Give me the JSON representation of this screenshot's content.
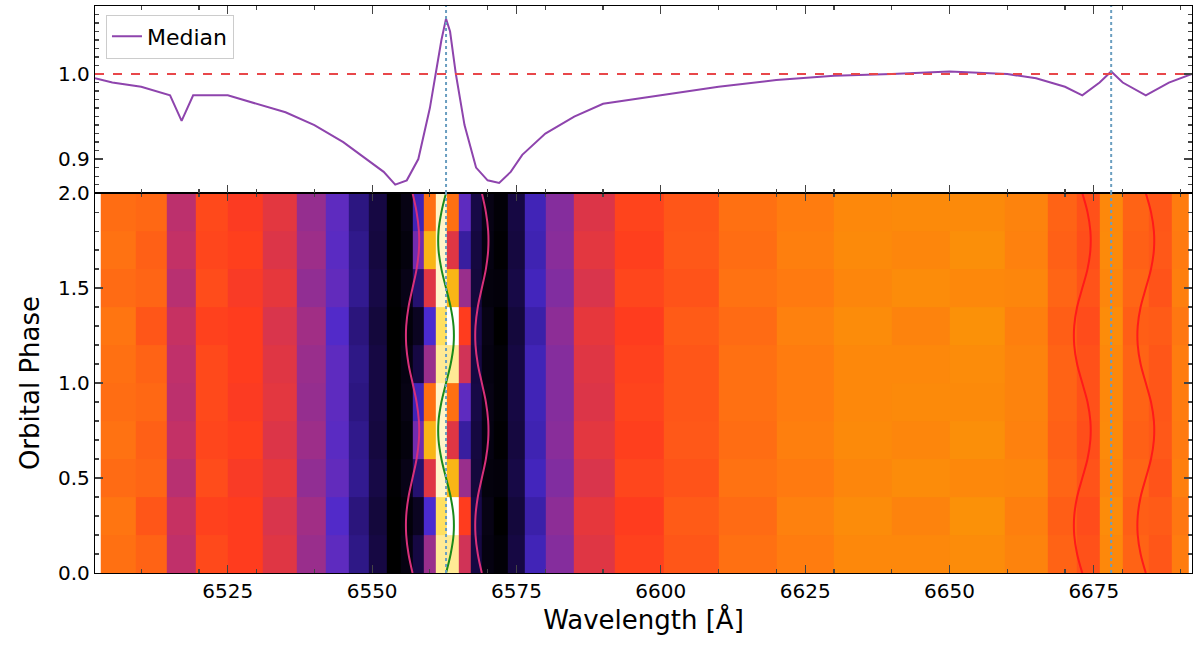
{
  "chart_data": [
    {
      "type": "line",
      "series": [
        {
          "name": "Median",
          "color": "#8e44ad",
          "x": [
            6502,
            6505,
            6510,
            6515,
            6517,
            6519,
            6525,
            6530,
            6535,
            6540,
            6545,
            6548,
            6550,
            6552,
            6554,
            6556,
            6558,
            6560,
            6561,
            6562,
            6562.8,
            6563.5,
            6564.5,
            6566,
            6568,
            6570,
            6572,
            6574,
            6576,
            6580,
            6585,
            6590,
            6600,
            6610,
            6620,
            6630,
            6640,
            6650,
            6660,
            6665,
            6670,
            6673,
            6676,
            6678,
            6680,
            6684,
            6688,
            6692
          ],
          "values": [
            0.995,
            0.99,
            0.985,
            0.975,
            0.945,
            0.975,
            0.975,
            0.965,
            0.955,
            0.94,
            0.92,
            0.905,
            0.895,
            0.885,
            0.87,
            0.875,
            0.9,
            0.96,
            1.0,
            1.04,
            1.065,
            1.05,
            1.0,
            0.94,
            0.89,
            0.875,
            0.872,
            0.885,
            0.905,
            0.93,
            0.95,
            0.965,
            0.975,
            0.985,
            0.993,
            0.998,
            1.0,
            1.003,
            1.0,
            0.995,
            0.985,
            0.975,
            0.99,
            1.003,
            0.99,
            0.975,
            0.99,
            1.0
          ]
        }
      ],
      "reference_lines": [
        {
          "axis": "y",
          "value": 1.0,
          "color": "#e8474a",
          "line_style": "dashed"
        },
        {
          "axis": "x",
          "value": 6562.8,
          "color": "#6a9ec0",
          "line_style": "dotted"
        },
        {
          "axis": "x",
          "value": 6678,
          "color": "#6a9ec0",
          "line_style": "dotted"
        }
      ],
      "xlim": [
        6502,
        6692
      ],
      "xticks": [
        6525,
        6550,
        6575,
        6600,
        6625,
        6650,
        6675
      ],
      "ylim": [
        0.86,
        1.08
      ],
      "yticks": [
        0.9,
        {
          "value": 1.0,
          "label": "1.0"
        }
      ],
      "tick_labels": "y",
      "legend": "upper left"
    },
    {
      "type": "heatmap",
      "x_label": "Wavelength [Å]",
      "y_label": "Orbital Phase",
      "x": [
        6506,
        6512,
        6517,
        6522,
        6528,
        6534,
        6540,
        6544,
        6548,
        6551,
        6554,
        6556,
        6558,
        6560,
        6562,
        6564,
        6566,
        6568,
        6570,
        6572,
        6575,
        6578,
        6582,
        6588,
        6596,
        6605,
        6615,
        6625,
        6635,
        6645,
        6655,
        6664,
        6670,
        6674,
        6678,
        6682,
        6687,
        6690
      ],
      "y": [
        0.1,
        0.3,
        0.5,
        0.7,
        0.9,
        1.1,
        1.3,
        1.5,
        1.7,
        1.9
      ],
      "cells": [
        [
          0.99,
          0.985,
          0.95,
          0.975,
          0.97,
          0.96,
          0.94,
          0.925,
          0.905,
          0.89,
          0.87,
          0.875,
          0.89,
          0.94,
          1.05,
          1.05,
          0.955,
          0.89,
          0.875,
          0.872,
          0.89,
          0.915,
          0.935,
          0.96,
          0.972,
          0.98,
          0.99,
          0.995,
          1.0,
          1.0,
          1.002,
          0.998,
          0.985,
          0.978,
          1.0,
          0.985,
          0.98,
          0.995
        ],
        [
          0.992,
          0.98,
          0.952,
          0.972,
          0.97,
          0.958,
          0.942,
          0.922,
          0.903,
          0.888,
          0.868,
          0.873,
          0.88,
          0.92,
          1.04,
          1.07,
          0.97,
          0.892,
          0.876,
          0.87,
          0.888,
          0.912,
          0.937,
          0.962,
          0.97,
          0.982,
          0.988,
          0.997,
          1.002,
          0.998,
          1.004,
          0.996,
          0.983,
          0.976,
          1.002,
          0.983,
          0.982,
          0.993
        ],
        [
          0.988,
          0.986,
          0.948,
          0.976,
          0.968,
          0.962,
          0.938,
          0.926,
          0.907,
          0.891,
          0.871,
          0.877,
          0.9,
          0.96,
          1.06,
          1.02,
          0.94,
          0.888,
          0.874,
          0.873,
          0.891,
          0.916,
          0.934,
          0.958,
          0.974,
          0.979,
          0.991,
          0.994,
          0.999,
          1.002,
          1.0,
          0.999,
          0.986,
          0.979,
          0.999,
          0.986,
          0.979,
          0.996
        ],
        [
          0.991,
          0.984,
          0.951,
          0.974,
          0.971,
          0.959,
          0.941,
          0.924,
          0.906,
          0.889,
          0.87,
          0.874,
          0.93,
          1.02,
          1.06,
          0.96,
          0.91,
          0.889,
          0.875,
          0.871,
          0.889,
          0.914,
          0.936,
          0.961,
          0.971,
          0.981,
          0.989,
          0.996,
          1.001,
          0.999,
          1.003,
          0.997,
          0.984,
          0.977,
          1.001,
          0.984,
          0.981,
          0.994
        ],
        [
          0.989,
          0.987,
          0.949,
          0.975,
          0.969,
          0.961,
          0.939,
          0.925,
          0.904,
          0.89,
          0.869,
          0.876,
          0.915,
          0.99,
          1.06,
          0.99,
          0.925,
          0.891,
          0.876,
          0.872,
          0.89,
          0.915,
          0.935,
          0.959,
          0.973,
          0.98,
          0.99,
          0.995,
          1.0,
          1.001,
          1.001,
          0.998,
          0.985,
          0.978,
          1.0,
          0.985,
          0.98,
          0.995
        ],
        [
          0.99,
          0.985,
          0.95,
          0.975,
          0.97,
          0.96,
          0.94,
          0.925,
          0.905,
          0.89,
          0.87,
          0.875,
          0.89,
          0.94,
          1.05,
          1.05,
          0.955,
          0.89,
          0.875,
          0.872,
          0.89,
          0.915,
          0.935,
          0.96,
          0.972,
          0.98,
          0.99,
          0.995,
          1.0,
          1.0,
          1.002,
          0.998,
          0.985,
          0.978,
          1.0,
          0.985,
          0.98,
          0.995
        ],
        [
          0.992,
          0.98,
          0.952,
          0.972,
          0.97,
          0.958,
          0.942,
          0.922,
          0.903,
          0.888,
          0.868,
          0.873,
          0.88,
          0.92,
          1.04,
          1.07,
          0.97,
          0.892,
          0.876,
          0.87,
          0.888,
          0.912,
          0.937,
          0.962,
          0.97,
          0.982,
          0.988,
          0.997,
          1.002,
          0.998,
          1.004,
          0.996,
          0.983,
          0.976,
          1.002,
          0.983,
          0.982,
          0.993
        ],
        [
          0.988,
          0.986,
          0.948,
          0.976,
          0.968,
          0.962,
          0.938,
          0.926,
          0.907,
          0.891,
          0.871,
          0.877,
          0.9,
          0.96,
          1.06,
          1.02,
          0.94,
          0.888,
          0.874,
          0.873,
          0.891,
          0.916,
          0.934,
          0.958,
          0.974,
          0.979,
          0.991,
          0.994,
          0.999,
          1.002,
          1.0,
          0.999,
          0.986,
          0.979,
          0.999,
          0.986,
          0.979,
          0.996
        ],
        [
          0.991,
          0.984,
          0.951,
          0.974,
          0.971,
          0.959,
          0.941,
          0.924,
          0.906,
          0.889,
          0.87,
          0.874,
          0.93,
          1.02,
          1.06,
          0.96,
          0.91,
          0.889,
          0.875,
          0.871,
          0.889,
          0.914,
          0.936,
          0.961,
          0.971,
          0.981,
          0.989,
          0.996,
          1.001,
          0.999,
          1.003,
          0.997,
          0.984,
          0.977,
          1.001,
          0.984,
          0.981,
          0.994
        ],
        [
          0.989,
          0.987,
          0.949,
          0.975,
          0.969,
          0.961,
          0.939,
          0.925,
          0.904,
          0.89,
          0.869,
          0.876,
          0.915,
          0.99,
          1.06,
          0.99,
          0.925,
          0.891,
          0.876,
          0.872,
          0.89,
          0.915,
          0.935,
          0.959,
          0.973,
          0.98,
          0.99,
          0.995,
          1.0,
          1.001,
          1.001,
          0.998,
          0.985,
          0.978,
          1.0,
          0.985,
          0.98,
          0.995
        ]
      ],
      "color_range": [
        0.87,
        1.07
      ],
      "curve_phase": [
        0,
        0.1,
        0.2,
        0.3,
        0.4,
        0.5,
        0.6,
        0.7,
        0.8,
        0.9,
        1.0,
        1.1,
        1.2,
        1.3,
        1.4,
        1.5,
        1.6,
        1.7,
        1.8,
        1.9,
        2.0
      ],
      "curves": [
        {
          "color": "#1a8a1a",
          "x": [
            6562.8,
            6563.6,
            6564.1,
            6564.1,
            6563.6,
            6562.8,
            6562.0,
            6561.5,
            6561.5,
            6562.0,
            6562.8,
            6563.6,
            6564.1,
            6564.1,
            6563.6,
            6562.8,
            6562.0,
            6561.5,
            6561.5,
            6562.0,
            6562.8
          ]
        },
        {
          "color": "#d8307a",
          "x": [
            6557.0,
            6556.3,
            6555.9,
            6555.9,
            6556.3,
            6557.0,
            6557.7,
            6558.1,
            6558.1,
            6557.7,
            6557.0,
            6556.3,
            6555.9,
            6555.9,
            6556.3,
            6557.0,
            6557.7,
            6558.1,
            6558.1,
            6557.7,
            6557.0
          ]
        },
        {
          "color": "#d8307a",
          "x": [
            6569.0,
            6568.3,
            6567.9,
            6567.9,
            6568.3,
            6569.0,
            6569.7,
            6570.1,
            6570.1,
            6569.7,
            6569.0,
            6568.3,
            6567.9,
            6567.9,
            6568.3,
            6569.0,
            6569.7,
            6570.1,
            6570.1,
            6569.7,
            6569.0
          ]
        },
        {
          "color": "#ff1a1a",
          "x": [
            6673.0,
            6672.1,
            6671.6,
            6671.6,
            6672.1,
            6673.0,
            6673.9,
            6674.4,
            6674.4,
            6673.9,
            6673.0,
            6672.1,
            6671.6,
            6671.6,
            6672.1,
            6673.0,
            6673.9,
            6674.4,
            6674.4,
            6673.9,
            6673.0
          ]
        },
        {
          "color": "#ff1a1a",
          "x": [
            6684.0,
            6683.1,
            6682.6,
            6682.6,
            6683.1,
            6684.0,
            6684.9,
            6685.4,
            6685.4,
            6684.9,
            6684.0,
            6683.1,
            6682.6,
            6682.6,
            6683.1,
            6684.0,
            6684.9,
            6685.4,
            6685.4,
            6684.9,
            6684.0
          ]
        }
      ],
      "reference_lines": [
        {
          "axis": "x",
          "value": 6562.8,
          "color": "#6a9ec0",
          "line_style": "dotted"
        },
        {
          "axis": "x",
          "value": 6678,
          "color": "#6a9ec0",
          "line_style": "dotted"
        }
      ],
      "xlim": [
        6502,
        6692
      ],
      "xticks": [
        6525,
        6550,
        6575,
        6600,
        6625,
        6650,
        6675
      ],
      "ylim": [
        0,
        2
      ],
      "yticks": [
        {
          "value": 0,
          "label": "0.0"
        },
        {
          "value": 0.5,
          "label": "0.5"
        },
        {
          "value": 1,
          "label": "1.0"
        },
        {
          "value": 1.5,
          "label": "1.5"
        },
        {
          "value": 2,
          "label": "2.0"
        }
      ]
    }
  ]
}
